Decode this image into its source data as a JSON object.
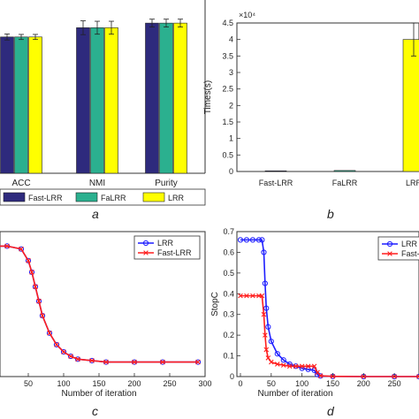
{
  "panel_labels": [
    "a",
    "b",
    "c",
    "d"
  ],
  "colors": {
    "fast_lrr": "#2e2a7d",
    "falrr": "#2bb08f",
    "lrr_bar": "#ffff00",
    "lrr_line": "#1e1eff",
    "fast_lrr_line": "#ff1e1e",
    "axis": "#333333"
  },
  "chart_data": [
    {
      "type": "bar",
      "panel": "a",
      "categories": [
        "ACC",
        "NMI",
        "Purity"
      ],
      "legend": [
        "Fast-LRR",
        "FaLRR",
        "LRR"
      ],
      "series": [
        {
          "name": "Fast-LRR",
          "values": [
            0.59,
            0.63,
            0.65
          ],
          "errors": [
            0.013,
            0.03,
            0.017
          ]
        },
        {
          "name": "FaLRR",
          "values": [
            0.59,
            0.63,
            0.65
          ],
          "errors": [
            0.011,
            0.028,
            0.017
          ]
        },
        {
          "name": "LRR",
          "values": [
            0.59,
            0.63,
            0.65
          ],
          "errors": [
            0.011,
            0.028,
            0.017
          ]
        }
      ],
      "ylim": [
        0,
        0.75
      ]
    },
    {
      "type": "bar",
      "panel": "b",
      "categories": [
        "Fast-LRR",
        "FaLRR",
        "LRR"
      ],
      "values": [
        0.02,
        0.03,
        4.0
      ],
      "errors": [
        0,
        0,
        0.5
      ],
      "ylabel": "Times(s)",
      "yscale_label": "×10⁴",
      "ylim": [
        0,
        4.5
      ],
      "yticks": [
        "0",
        "0.5",
        "1",
        "1.5",
        "2",
        "2.5",
        "3",
        "3.5",
        "4",
        "4.5"
      ]
    },
    {
      "type": "line",
      "panel": "c",
      "xlabel": "Number of iteration",
      "xlim": [
        0,
        300
      ],
      "ylim": [
        0,
        1
      ],
      "xticks": [
        "50",
        "100",
        "150",
        "200",
        "250",
        "300"
      ],
      "legend": [
        "LRR",
        "Fast-LRR"
      ],
      "series": [
        {
          "name": "LRR",
          "x": [
            0,
            20,
            40,
            50,
            55,
            60,
            65,
            70,
            80,
            90,
            100,
            110,
            120,
            140,
            160,
            200,
            240,
            290
          ],
          "y": [
            0.9,
            0.9,
            0.88,
            0.8,
            0.72,
            0.62,
            0.52,
            0.42,
            0.3,
            0.22,
            0.17,
            0.14,
            0.12,
            0.11,
            0.1,
            0.1,
            0.1,
            0.1
          ]
        },
        {
          "name": "Fast-LRR",
          "x": [
            0,
            20,
            40,
            50,
            55,
            60,
            65,
            70,
            80,
            90,
            100,
            110,
            120,
            140,
            160,
            200,
            240,
            290
          ],
          "y": [
            0.9,
            0.9,
            0.88,
            0.8,
            0.72,
            0.62,
            0.52,
            0.42,
            0.3,
            0.22,
            0.17,
            0.14,
            0.12,
            0.11,
            0.1,
            0.1,
            0.1,
            0.1
          ]
        }
      ]
    },
    {
      "type": "line",
      "panel": "d",
      "ylabel": "StopC",
      "xlabel": "Number of iteration",
      "xlim": [
        0,
        290
      ],
      "ylim": [
        0,
        0.7
      ],
      "xticks": [
        "0",
        "50",
        "100",
        "150",
        "200",
        "250"
      ],
      "yticks": [
        "0",
        "0.1",
        "0.2",
        "0.3",
        "0.4",
        "0.5",
        "0.6",
        "0.7"
      ],
      "legend": [
        "LRR",
        "Fast-LRR"
      ],
      "series": [
        {
          "name": "LRR",
          "x": [
            0,
            10,
            20,
            30,
            35,
            38,
            40,
            42,
            45,
            50,
            60,
            70,
            80,
            90,
            100,
            110,
            120,
            125,
            130,
            150,
            200,
            250,
            290
          ],
          "y": [
            0.66,
            0.66,
            0.66,
            0.66,
            0.66,
            0.6,
            0.45,
            0.33,
            0.24,
            0.17,
            0.11,
            0.08,
            0.06,
            0.05,
            0.04,
            0.035,
            0.03,
            0.01,
            0.003,
            0.001,
            0.0,
            0.0,
            0.0
          ]
        },
        {
          "name": "Fast-LRR",
          "x": [
            0,
            10,
            20,
            30,
            35,
            38,
            40,
            42,
            45,
            50,
            60,
            70,
            80,
            90,
            100,
            110,
            120,
            125,
            130,
            150,
            200,
            250,
            290
          ],
          "y": [
            0.39,
            0.39,
            0.39,
            0.39,
            0.39,
            0.3,
            0.2,
            0.13,
            0.09,
            0.07,
            0.06,
            0.055,
            0.05,
            0.05,
            0.05,
            0.05,
            0.05,
            0.02,
            0.004,
            0.001,
            0.0,
            0.0,
            0.0
          ]
        }
      ]
    }
  ]
}
